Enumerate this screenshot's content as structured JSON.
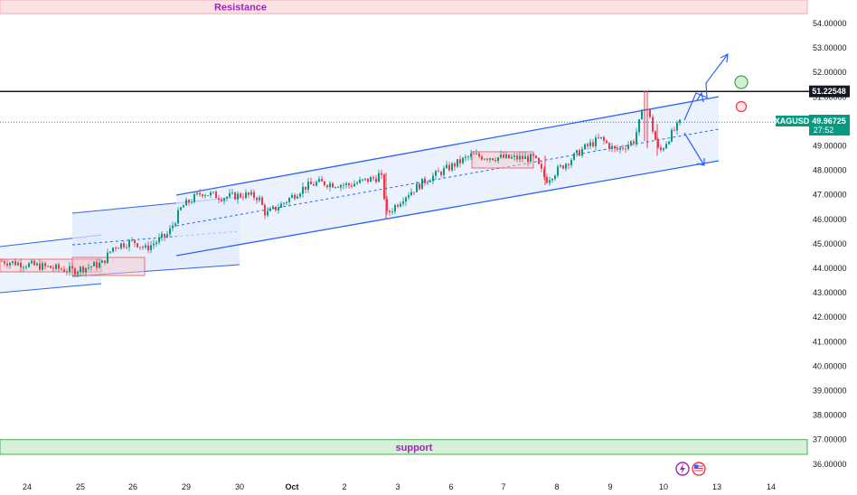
{
  "chart_data": {
    "type": "candlestick",
    "symbol": "XAGUSD",
    "last_price": "49.96725",
    "countdown": "27:52",
    "marked_level": "51.22548",
    "resistance_label": "Resistance",
    "support_label": "support",
    "resistance_zone": [
      54.4,
      55.0
    ],
    "support_zone": [
      36.4,
      37.0
    ],
    "ylim": [
      35.6,
      55.0
    ],
    "y_ticks": [
      "54.00000",
      "53.00000",
      "52.00000",
      "51.00000",
      "50.00000",
      "49.00000",
      "48.00000",
      "47.00000",
      "46.00000",
      "45.00000",
      "44.00000",
      "43.00000",
      "42.00000",
      "41.00000",
      "40.00000",
      "39.00000",
      "38.00000",
      "37.00000",
      "36.00000"
    ],
    "x_ticks": [
      "24",
      "25",
      "26",
      "29",
      "30",
      "Oct",
      "2",
      "3",
      "6",
      "7",
      "8",
      "9",
      "10",
      "13",
      "14"
    ],
    "colors": {
      "up": "#089981",
      "down": "#f23645",
      "channel": "#2962ff",
      "resistance": "#f7c6c9",
      "support": "#c8e6c9",
      "price_badge": "#089981",
      "level_badge": "#131722"
    }
  }
}
